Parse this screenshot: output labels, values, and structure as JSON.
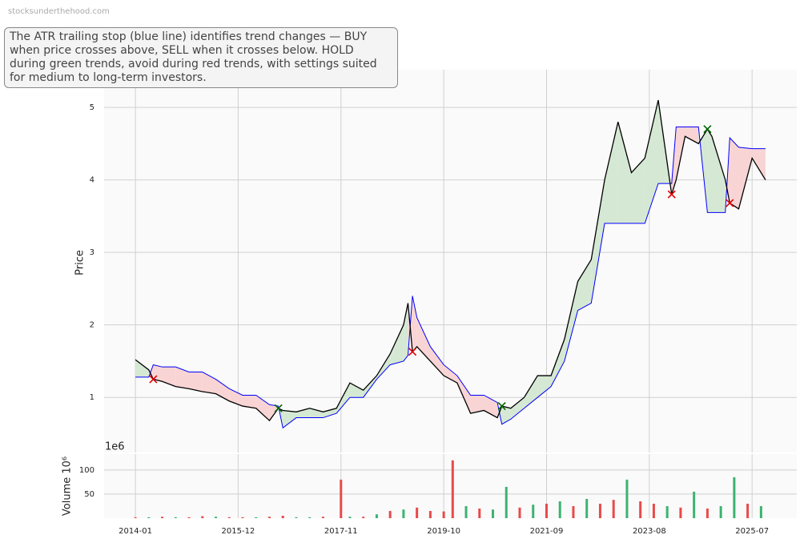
{
  "watermark": "stocksunderthehood.com",
  "chart_data": [
    {
      "type": "line",
      "annotation": "The ATR trailing stop (blue line) identifies trend changes — BUY when price crosses above, SELL when it crosses below. HOLD during green trends, avoid during red trends, with settings suited for medium to long-term investors.",
      "ylabel": "Price",
      "ylim": [
        0.24,
        5.52
      ],
      "yticks": [
        1,
        2,
        3,
        4,
        5
      ],
      "grid": true,
      "x": [
        "2014-01",
        "2014-04",
        "2014-05",
        "2014-07",
        "2014-10",
        "2015-01",
        "2015-04",
        "2015-07",
        "2015-10",
        "2016-01",
        "2016-04",
        "2016-07",
        "2016-09",
        "2016-10",
        "2017-01",
        "2017-04",
        "2017-07",
        "2017-10",
        "2018-01",
        "2018-04",
        "2018-07",
        "2018-10",
        "2019-01",
        "2019-02",
        "2019-03",
        "2019-04",
        "2019-07",
        "2019-10",
        "2020-01",
        "2020-04",
        "2020-07",
        "2020-10",
        "2020-11",
        "2021-01",
        "2021-04",
        "2021-07",
        "2021-10",
        "2022-01",
        "2022-04",
        "2022-07",
        "2022-10",
        "2023-01",
        "2023-04",
        "2023-07",
        "2023-10",
        "2024-01",
        "2024-02",
        "2024-04",
        "2024-07",
        "2024-09",
        "2024-10",
        "2025-01",
        "2025-02",
        "2025-04",
        "2025-07",
        "2025-10"
      ],
      "series": [
        {
          "color": "#000000",
          "values": [
            1.52,
            1.38,
            1.25,
            1.22,
            1.15,
            1.12,
            1.08,
            1.05,
            0.95,
            0.88,
            0.85,
            0.68,
            0.85,
            0.82,
            0.8,
            0.85,
            0.8,
            0.85,
            1.2,
            1.1,
            1.3,
            1.6,
            2.0,
            2.3,
            1.63,
            1.7,
            1.5,
            1.3,
            1.2,
            0.78,
            0.82,
            0.72,
            0.88,
            0.85,
            1.0,
            1.3,
            1.3,
            1.8,
            2.6,
            2.9,
            4.0,
            4.8,
            4.1,
            4.3,
            5.1,
            3.8,
            4.0,
            4.6,
            4.5,
            4.7,
            4.6,
            4.0,
            3.68,
            3.6,
            4.3,
            4.0
          ]
        },
        {
          "color": "#0000ff",
          "values": [
            1.28,
            1.28,
            1.45,
            1.42,
            1.42,
            1.35,
            1.35,
            1.25,
            1.12,
            1.03,
            1.03,
            0.9,
            0.88,
            0.58,
            0.72,
            0.72,
            0.72,
            0.78,
            1.0,
            1.0,
            1.25,
            1.45,
            1.5,
            1.58,
            2.4,
            2.1,
            1.7,
            1.45,
            1.3,
            1.03,
            1.03,
            0.93,
            0.63,
            0.7,
            0.85,
            1.0,
            1.15,
            1.5,
            2.2,
            2.3,
            3.4,
            3.4,
            3.4,
            3.4,
            3.95,
            3.95,
            4.73,
            4.73,
            4.73,
            3.55,
            3.55,
            3.55,
            4.58,
            4.45,
            4.43,
            4.43
          ]
        }
      ],
      "fill_colors": {
        "above": "#d5e8d4",
        "below": "#f9d4d4"
      },
      "markers": [
        {
          "color": "#e00000",
          "x": [
            "2014-05",
            "2019-03",
            "2024-01",
            "2025-02"
          ],
          "values": [
            1.25,
            1.63,
            3.8,
            3.68
          ]
        },
        {
          "color": "#006400",
          "x": [
            "2016-09",
            "2020-11",
            "2024-09"
          ],
          "values": [
            0.85,
            0.88,
            4.7
          ]
        }
      ]
    },
    {
      "type": "bar",
      "ylabel": "Volume  10⁶",
      "offset_label": "1e6",
      "ylim": [
        0,
        133
      ],
      "yticks": [
        50,
        100
      ],
      "grid": true,
      "xlim": [
        "2013-06",
        "2026-05"
      ],
      "xticks": [
        "2014-01",
        "2015-12",
        "2017-11",
        "2019-10",
        "2021-09",
        "2023-08",
        "2025-07"
      ],
      "x": [
        "2014-01",
        "2014-04",
        "2014-07",
        "2014-10",
        "2015-01",
        "2015-04",
        "2015-07",
        "2015-10",
        "2016-01",
        "2016-04",
        "2016-07",
        "2016-10",
        "2017-01",
        "2017-04",
        "2017-07",
        "2017-11",
        "2018-01",
        "2018-04",
        "2018-07",
        "2018-10",
        "2019-01",
        "2019-04",
        "2019-07",
        "2019-10",
        "2019-12",
        "2020-03",
        "2020-06",
        "2020-09",
        "2020-12",
        "2021-03",
        "2021-06",
        "2021-09",
        "2021-12",
        "2022-03",
        "2022-06",
        "2022-09",
        "2022-12",
        "2023-03",
        "2023-06",
        "2023-09",
        "2023-12",
        "2024-03",
        "2024-06",
        "2024-09",
        "2024-12",
        "2025-03",
        "2025-06",
        "2025-09"
      ],
      "values": [
        2,
        2,
        3,
        2,
        2,
        4,
        3,
        2,
        2,
        2,
        3,
        5,
        2,
        2,
        3,
        80,
        3,
        3,
        8,
        15,
        18,
        22,
        15,
        14,
        120,
        25,
        20,
        18,
        65,
        22,
        28,
        30,
        35,
        25,
        40,
        30,
        38,
        80,
        35,
        30,
        25,
        22,
        55,
        20,
        25,
        85,
        30,
        25
      ],
      "colors": [
        "#e84a4a",
        "#3cb371",
        "#e84a4a",
        "#3cb371",
        "#e84a4a",
        "#e84a4a",
        "#3cb371",
        "#e84a4a",
        "#e84a4a",
        "#3cb371",
        "#e84a4a",
        "#e84a4a",
        "#3cb371",
        "#3cb371",
        "#e84a4a",
        "#e84a4a",
        "#3cb371",
        "#e84a4a",
        "#3cb371",
        "#e84a4a",
        "#3cb371",
        "#e84a4a",
        "#e84a4a",
        "#e84a4a",
        "#e84a4a",
        "#3cb371",
        "#e84a4a",
        "#3cb371",
        "#3cb371",
        "#e84a4a",
        "#3cb371",
        "#e84a4a",
        "#3cb371",
        "#e84a4a",
        "#3cb371",
        "#e84a4a",
        "#e84a4a",
        "#3cb371",
        "#e84a4a",
        "#e84a4a",
        "#3cb371",
        "#e84a4a",
        "#3cb371",
        "#e84a4a",
        "#3cb371",
        "#3cb371",
        "#e84a4a",
        "#3cb371"
      ]
    }
  ]
}
